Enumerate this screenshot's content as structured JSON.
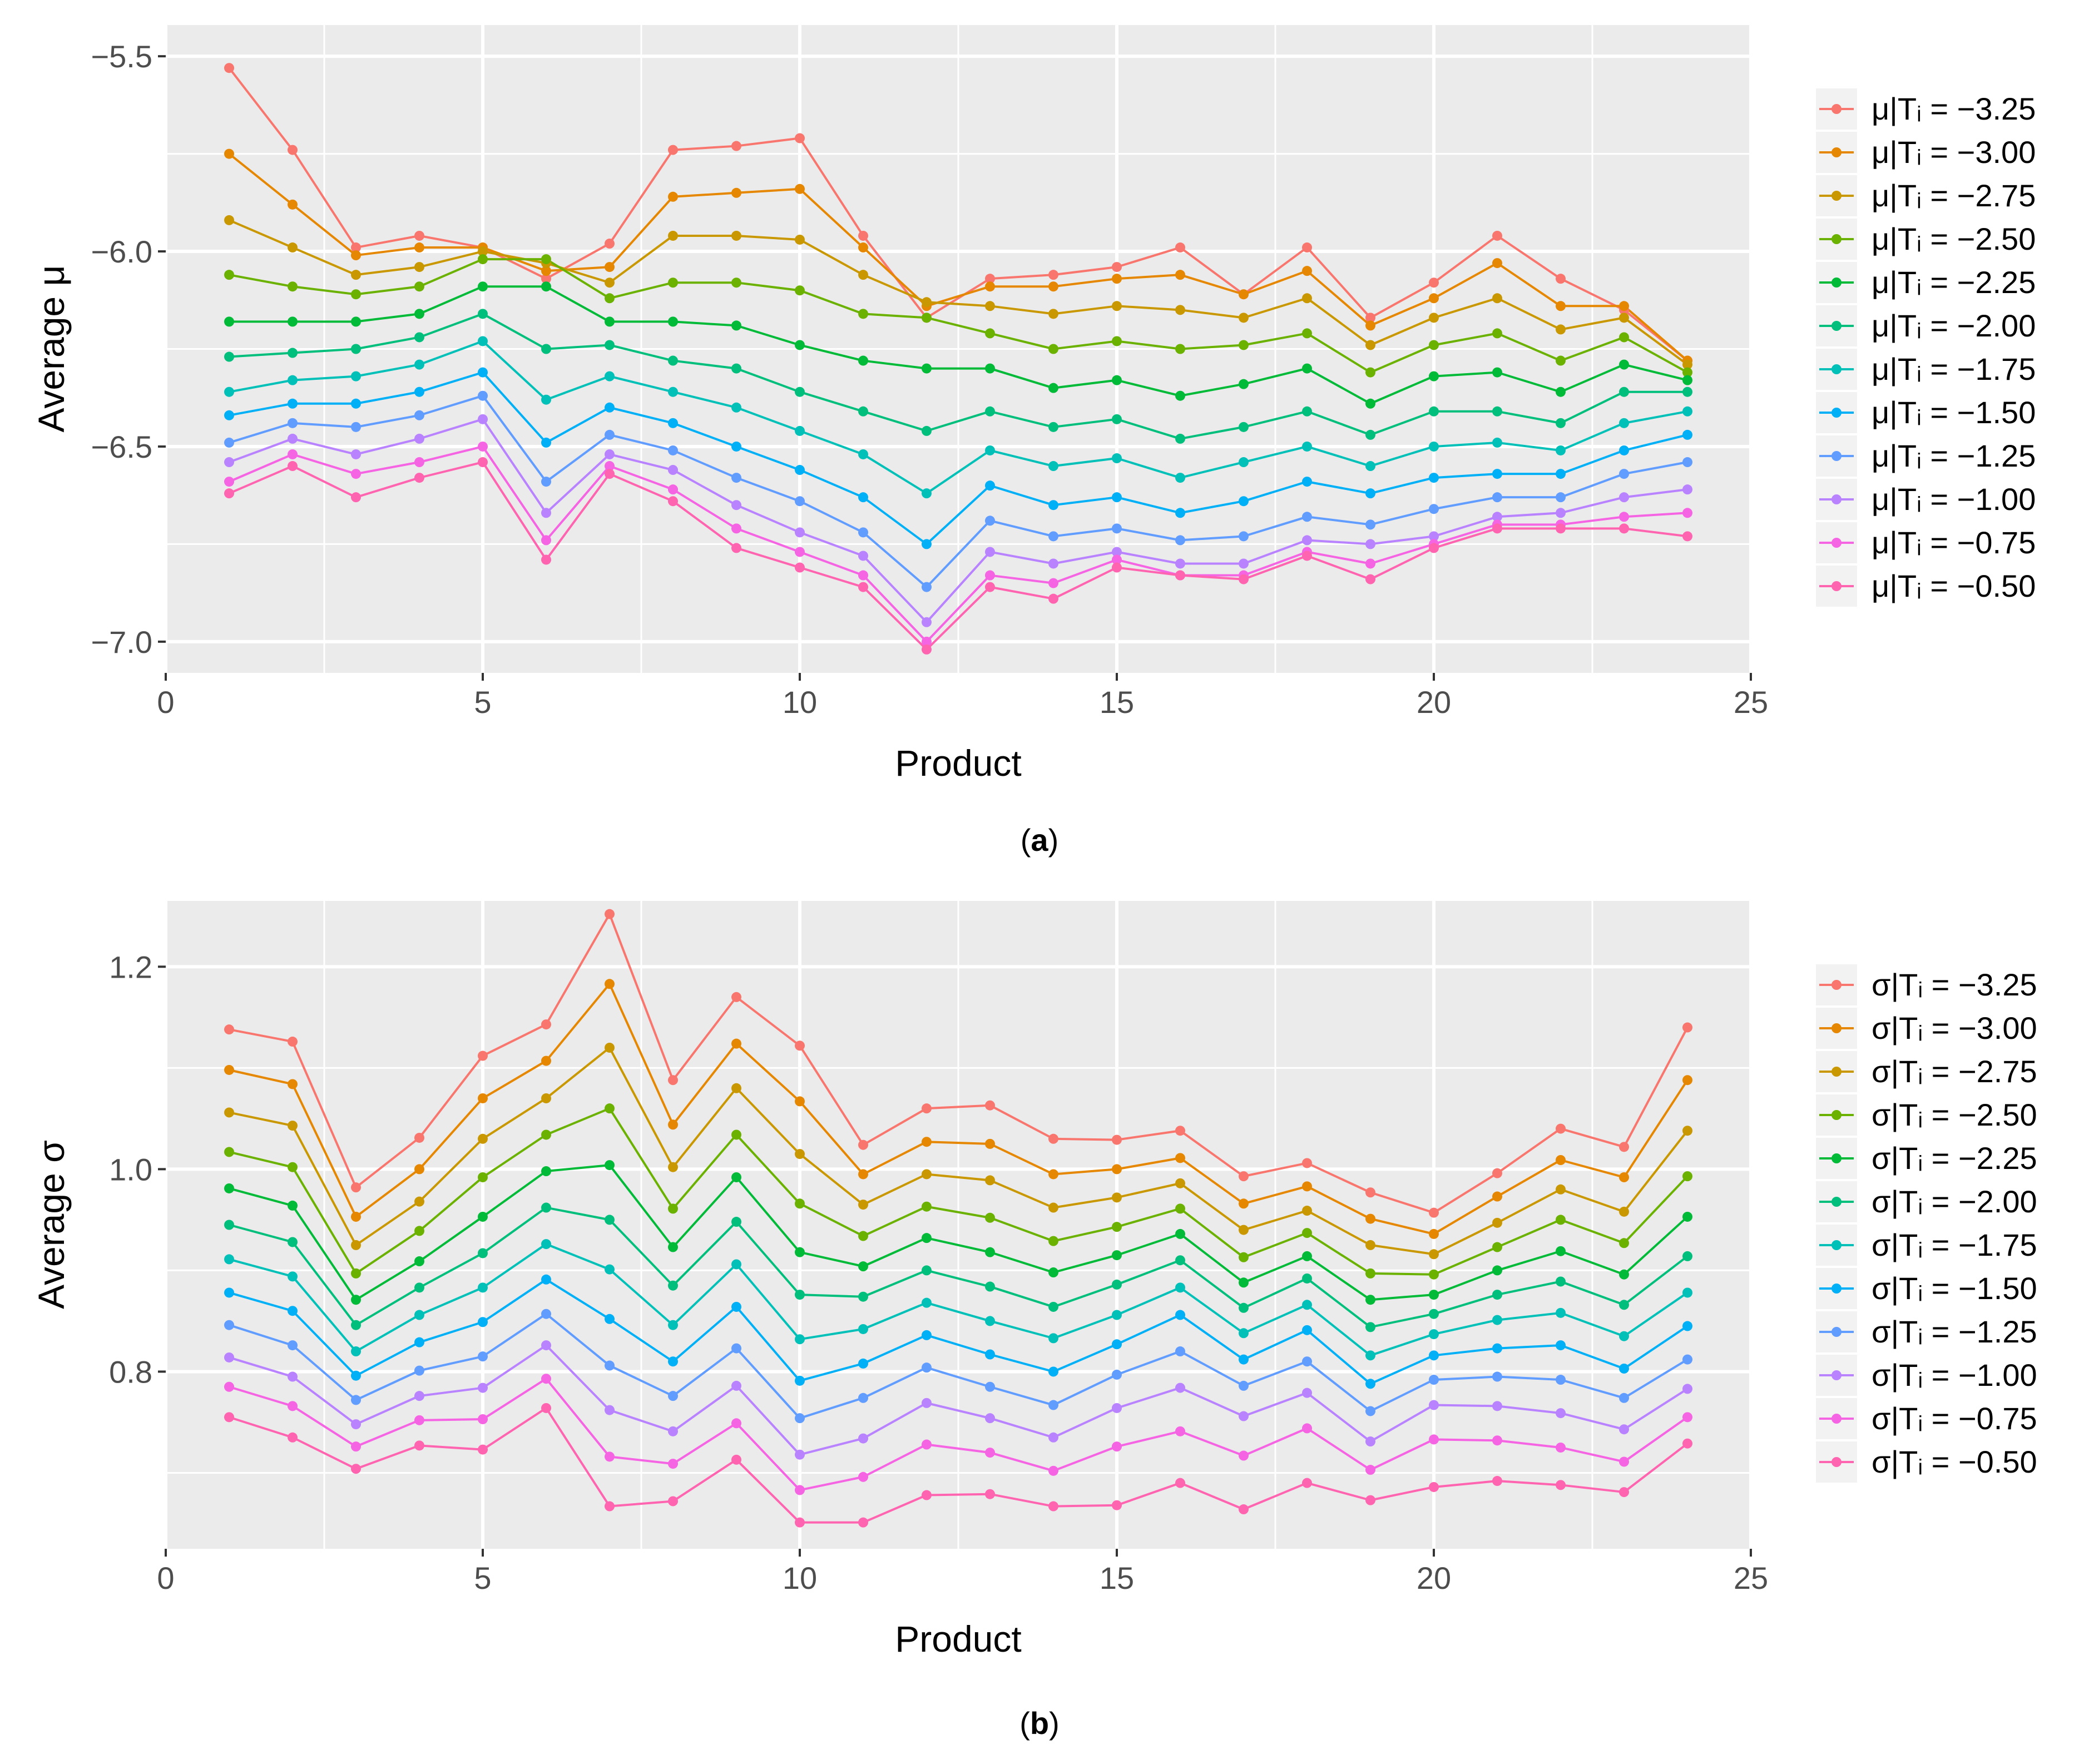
{
  "chart_data": [
    {
      "type": "line",
      "panel_label": "a",
      "title": "",
      "xlabel": "Product",
      "ylabel": "Average μ",
      "xlim": [
        0,
        25
      ],
      "ylim": [
        -7.08,
        -5.42
      ],
      "x_ticks": [
        0,
        5,
        10,
        15,
        20,
        25
      ],
      "y_ticks": [
        -7.0,
        -6.5,
        -6.0,
        -5.5
      ],
      "y_tick_labels": [
        "−7.0",
        "−6.5",
        "−6.0",
        "−5.5"
      ],
      "grid": true,
      "legend_position": "right",
      "x": [
        1,
        2,
        3,
        4,
        5,
        6,
        7,
        8,
        9,
        10,
        11,
        12,
        13,
        14,
        15,
        16,
        17,
        18,
        19,
        20,
        21,
        22,
        23,
        24
      ],
      "series": [
        {
          "name": "μ|Tᵢ = −3.25",
          "color": "#F8766D",
          "values": [
            -5.53,
            -5.74,
            -5.99,
            -5.96,
            -5.99,
            -6.07,
            -5.98,
            -5.74,
            -5.73,
            -5.71,
            -5.96,
            -6.17,
            -6.07,
            -6.06,
            -6.04,
            -5.99,
            -6.11,
            -5.99,
            -6.17,
            -6.08,
            -5.96,
            -6.07,
            -6.15,
            -6.28
          ]
        },
        {
          "name": "μ|Tᵢ = −3.00",
          "color": "#E58700",
          "values": [
            -5.75,
            -5.88,
            -6.01,
            -5.99,
            -5.99,
            -6.05,
            -6.04,
            -5.86,
            -5.85,
            -5.84,
            -5.99,
            -6.14,
            -6.09,
            -6.09,
            -6.07,
            -6.06,
            -6.11,
            -6.05,
            -6.19,
            -6.12,
            -6.03,
            -6.14,
            -6.14,
            -6.28
          ]
        },
        {
          "name": "μ|Tᵢ = −2.75",
          "color": "#C99800",
          "values": [
            -5.92,
            -5.99,
            -6.06,
            -6.04,
            -6.0,
            -6.03,
            -6.08,
            -5.96,
            -5.96,
            -5.97,
            -6.06,
            -6.13,
            -6.14,
            -6.16,
            -6.14,
            -6.15,
            -6.17,
            -6.12,
            -6.24,
            -6.17,
            -6.12,
            -6.2,
            -6.17,
            -6.29
          ]
        },
        {
          "name": "μ|Tᵢ = −2.50",
          "color": "#6BB100",
          "values": [
            -6.06,
            -6.09,
            -6.11,
            -6.09,
            -6.02,
            -6.02,
            -6.12,
            -6.08,
            -6.08,
            -6.1,
            -6.16,
            -6.17,
            -6.21,
            -6.25,
            -6.23,
            -6.25,
            -6.24,
            -6.21,
            -6.31,
            -6.24,
            -6.21,
            -6.28,
            -6.22,
            -6.31
          ]
        },
        {
          "name": "μ|Tᵢ = −2.25",
          "color": "#00BA38",
          "values": [
            -6.18,
            -6.18,
            -6.18,
            -6.16,
            -6.09,
            -6.09,
            -6.18,
            -6.18,
            -6.19,
            -6.24,
            -6.28,
            -6.3,
            -6.3,
            -6.35,
            -6.33,
            -6.37,
            -6.34,
            -6.3,
            -6.39,
            -6.32,
            -6.31,
            -6.36,
            -6.29,
            -6.33
          ]
        },
        {
          "name": "μ|Tᵢ = −2.00",
          "color": "#00BF7D",
          "values": [
            -6.27,
            -6.26,
            -6.25,
            -6.22,
            -6.16,
            -6.25,
            -6.24,
            -6.28,
            -6.3,
            -6.36,
            -6.41,
            -6.46,
            -6.41,
            -6.45,
            -6.43,
            -6.48,
            -6.45,
            -6.41,
            -6.47,
            -6.41,
            -6.41,
            -6.44,
            -6.36,
            -6.36
          ]
        },
        {
          "name": "μ|Tᵢ = −1.75",
          "color": "#00C0B8",
          "values": [
            -6.36,
            -6.33,
            -6.32,
            -6.29,
            -6.23,
            -6.38,
            -6.32,
            -6.36,
            -6.4,
            -6.46,
            -6.52,
            -6.62,
            -6.51,
            -6.55,
            -6.53,
            -6.58,
            -6.54,
            -6.5,
            -6.55,
            -6.5,
            -6.49,
            -6.51,
            -6.44,
            -6.41
          ]
        },
        {
          "name": "μ|Tᵢ = −1.50",
          "color": "#00B0F6",
          "values": [
            -6.42,
            -6.39,
            -6.39,
            -6.36,
            -6.31,
            -6.49,
            -6.4,
            -6.44,
            -6.5,
            -6.56,
            -6.63,
            -6.75,
            -6.6,
            -6.65,
            -6.63,
            -6.67,
            -6.64,
            -6.59,
            -6.62,
            -6.58,
            -6.57,
            -6.57,
            -6.51,
            -6.47
          ]
        },
        {
          "name": "μ|Tᵢ = −1.25",
          "color": "#619CFF",
          "values": [
            -6.49,
            -6.44,
            -6.45,
            -6.42,
            -6.37,
            -6.59,
            -6.47,
            -6.51,
            -6.58,
            -6.64,
            -6.72,
            -6.86,
            -6.69,
            -6.73,
            -6.71,
            -6.74,
            -6.73,
            -6.68,
            -6.7,
            -6.66,
            -6.63,
            -6.63,
            -6.57,
            -6.54
          ]
        },
        {
          "name": "μ|Tᵢ = −1.00",
          "color": "#B983FF",
          "values": [
            -6.54,
            -6.48,
            -6.52,
            -6.48,
            -6.43,
            -6.67,
            -6.52,
            -6.56,
            -6.65,
            -6.72,
            -6.78,
            -6.95,
            -6.77,
            -6.8,
            -6.77,
            -6.8,
            -6.8,
            -6.74,
            -6.75,
            -6.73,
            -6.68,
            -6.67,
            -6.63,
            -6.61
          ]
        },
        {
          "name": "μ|Tᵢ = −0.75",
          "color": "#F564E3",
          "values": [
            -6.59,
            -6.52,
            -6.57,
            -6.54,
            -6.5,
            -6.74,
            -6.55,
            -6.61,
            -6.71,
            -6.77,
            -6.83,
            -7.0,
            -6.83,
            -6.85,
            -6.79,
            -6.83,
            -6.83,
            -6.77,
            -6.8,
            -6.75,
            -6.7,
            -6.7,
            -6.68,
            -6.67
          ]
        },
        {
          "name": "μ|Tᵢ = −0.50",
          "color": "#FF64B0",
          "values": [
            -6.62,
            -6.55,
            -6.63,
            -6.58,
            -6.54,
            -6.79,
            -6.57,
            -6.64,
            -6.76,
            -6.81,
            -6.86,
            -7.02,
            -6.86,
            -6.89,
            -6.81,
            -6.83,
            -6.84,
            -6.78,
            -6.84,
            -6.76,
            -6.71,
            -6.71,
            -6.71,
            -6.73
          ]
        }
      ]
    },
    {
      "type": "line",
      "panel_label": "b",
      "title": "",
      "xlabel": "Product",
      "ylabel": "Average σ",
      "xlim": [
        0,
        25
      ],
      "ylim": [
        0.625,
        1.265
      ],
      "x_ticks": [
        0,
        5,
        10,
        15,
        20,
        25
      ],
      "y_ticks": [
        0.8,
        1.0,
        1.2
      ],
      "y_tick_labels": [
        "0.8",
        "1.0",
        "1.2"
      ],
      "grid": true,
      "legend_position": "right",
      "x": [
        1,
        2,
        3,
        4,
        5,
        6,
        7,
        8,
        9,
        10,
        11,
        12,
        13,
        14,
        15,
        16,
        17,
        18,
        19,
        20,
        21,
        22,
        23,
        24
      ],
      "series": [
        {
          "name": "σ|Tᵢ = −3.25",
          "color": "#F8766D",
          "values": [
            1.138,
            1.126,
            0.982,
            1.031,
            1.112,
            1.143,
            1.252,
            1.088,
            1.17,
            1.122,
            1.024,
            1.06,
            1.063,
            1.03,
            1.029,
            1.038,
            0.993,
            1.006,
            0.977,
            0.957,
            0.996,
            1.04,
            1.022,
            1.14
          ]
        },
        {
          "name": "σ|Tᵢ = −3.00",
          "color": "#E58700",
          "values": [
            1.098,
            1.084,
            0.953,
            1.0,
            1.07,
            1.107,
            1.183,
            1.044,
            1.124,
            1.067,
            0.995,
            1.027,
            1.025,
            0.995,
            1.0,
            1.011,
            0.966,
            0.983,
            0.951,
            0.936,
            0.973,
            1.009,
            0.992,
            1.088
          ]
        },
        {
          "name": "σ|Tᵢ = −2.75",
          "color": "#C99800",
          "values": [
            1.056,
            1.043,
            0.925,
            0.968,
            1.03,
            1.07,
            1.12,
            1.002,
            1.08,
            1.015,
            0.965,
            0.995,
            0.989,
            0.962,
            0.972,
            0.986,
            0.94,
            0.959,
            0.925,
            0.916,
            0.947,
            0.98,
            0.958,
            1.038
          ]
        },
        {
          "name": "σ|Tᵢ = −2.50",
          "color": "#6BB100",
          "values": [
            1.017,
            1.002,
            0.897,
            0.939,
            0.992,
            1.034,
            1.06,
            0.961,
            1.034,
            0.966,
            0.934,
            0.963,
            0.952,
            0.929,
            0.943,
            0.961,
            0.913,
            0.937,
            0.897,
            0.896,
            0.923,
            0.95,
            0.927,
            0.993
          ]
        },
        {
          "name": "σ|Tᵢ = −2.25",
          "color": "#00BA38",
          "values": [
            0.981,
            0.964,
            0.871,
            0.909,
            0.953,
            0.998,
            1.004,
            0.923,
            0.992,
            0.918,
            0.904,
            0.932,
            0.918,
            0.898,
            0.915,
            0.936,
            0.888,
            0.914,
            0.871,
            0.876,
            0.9,
            0.919,
            0.896,
            0.953
          ]
        },
        {
          "name": "σ|Tᵢ = −2.00",
          "color": "#00BF7D",
          "values": [
            0.945,
            0.928,
            0.846,
            0.883,
            0.917,
            0.962,
            0.95,
            0.885,
            0.948,
            0.876,
            0.874,
            0.9,
            0.884,
            0.864,
            0.886,
            0.91,
            0.863,
            0.892,
            0.844,
            0.857,
            0.876,
            0.889,
            0.866,
            0.914
          ]
        },
        {
          "name": "σ|Tᵢ = −1.75",
          "color": "#00C0B8",
          "values": [
            0.911,
            0.894,
            0.82,
            0.856,
            0.883,
            0.926,
            0.901,
            0.846,
            0.906,
            0.832,
            0.842,
            0.868,
            0.85,
            0.833,
            0.856,
            0.883,
            0.838,
            0.866,
            0.816,
            0.837,
            0.851,
            0.858,
            0.835,
            0.878
          ]
        },
        {
          "name": "σ|Tᵢ = −1.50",
          "color": "#00B0F6",
          "values": [
            0.878,
            0.86,
            0.796,
            0.829,
            0.849,
            0.891,
            0.852,
            0.81,
            0.864,
            0.791,
            0.808,
            0.836,
            0.817,
            0.8,
            0.827,
            0.856,
            0.812,
            0.841,
            0.788,
            0.816,
            0.823,
            0.826,
            0.803,
            0.845
          ]
        },
        {
          "name": "σ|Tᵢ = −1.25",
          "color": "#619CFF",
          "values": [
            0.846,
            0.826,
            0.772,
            0.801,
            0.815,
            0.857,
            0.806,
            0.776,
            0.823,
            0.754,
            0.774,
            0.804,
            0.785,
            0.767,
            0.797,
            0.82,
            0.786,
            0.81,
            0.761,
            0.792,
            0.795,
            0.792,
            0.774,
            0.812
          ]
        },
        {
          "name": "σ|Tᵢ = −1.00",
          "color": "#B983FF",
          "values": [
            0.814,
            0.795,
            0.748,
            0.776,
            0.784,
            0.826,
            0.762,
            0.741,
            0.786,
            0.718,
            0.734,
            0.769,
            0.754,
            0.735,
            0.764,
            0.784,
            0.756,
            0.779,
            0.731,
            0.767,
            0.766,
            0.759,
            0.743,
            0.783
          ]
        },
        {
          "name": "σ|Tᵢ = −0.75",
          "color": "#F564E3",
          "values": [
            0.785,
            0.766,
            0.726,
            0.752,
            0.753,
            0.793,
            0.716,
            0.709,
            0.749,
            0.683,
            0.696,
            0.728,
            0.72,
            0.702,
            0.726,
            0.741,
            0.717,
            0.744,
            0.703,
            0.733,
            0.732,
            0.725,
            0.711,
            0.755
          ]
        },
        {
          "name": "σ|Tᵢ = −0.50",
          "color": "#FF64B0",
          "values": [
            0.755,
            0.735,
            0.704,
            0.727,
            0.723,
            0.764,
            0.667,
            0.672,
            0.713,
            0.651,
            0.651,
            0.678,
            0.679,
            0.667,
            0.668,
            0.69,
            0.664,
            0.69,
            0.673,
            0.686,
            0.692,
            0.688,
            0.681,
            0.729
          ]
        }
      ]
    }
  ]
}
